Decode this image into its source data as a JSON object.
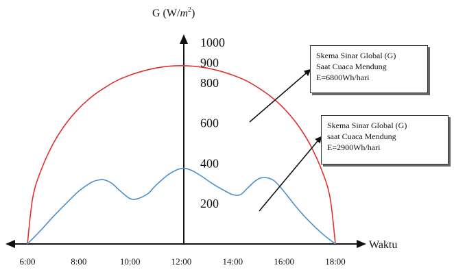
{
  "chart_data": {
    "type": "line",
    "ylabel_base": "G (W/",
    "ylabel_unit": "m",
    "ylabel_exp": "2",
    "ylabel_close": ")",
    "xlabel": "Waktu",
    "x_ticks": [
      "6:00",
      "8:00",
      "10:00",
      "12:00",
      "14:00",
      "16:00",
      "18:00"
    ],
    "y_ticks": [
      200,
      400,
      600,
      800,
      900,
      1000
    ],
    "ylim": [
      0,
      1000
    ],
    "xlim": [
      6,
      18
    ],
    "series": [
      {
        "color": "#e03030",
        "x": [
          6.0,
          6.2,
          6.5,
          7.0,
          7.5,
          8.0,
          8.5,
          9.0,
          9.5,
          10.0,
          10.5,
          11.0,
          11.5,
          12.0,
          12.5,
          13.0,
          13.5,
          14.0,
          14.5,
          15.0,
          15.5,
          16.0,
          16.5,
          17.0,
          17.5,
          17.8,
          18.0
        ],
        "y": [
          0,
          225,
          356,
          497,
          597,
          672,
          730,
          775,
          812,
          838,
          858,
          873,
          882,
          885,
          882,
          873,
          858,
          838,
          812,
          775,
          730,
          672,
          597,
          497,
          356,
          225,
          0
        ]
      },
      {
        "color": "#4a8fd0",
        "x": [
          6.0,
          6.5,
          7.0,
          7.5,
          8.0,
          8.5,
          8.8,
          9.0,
          9.3,
          9.6,
          10.0,
          10.3,
          10.7,
          11.0,
          11.5,
          12.0,
          12.4,
          12.8,
          13.2,
          13.6,
          14.0,
          14.3,
          14.6,
          14.9,
          15.2,
          15.6,
          16.0,
          16.5,
          17.0,
          17.5,
          18.0
        ],
        "y": [
          0,
          65,
          135,
          200,
          262,
          306,
          318,
          318,
          300,
          265,
          225,
          225,
          250,
          290,
          345,
          375,
          365,
          335,
          300,
          270,
          245,
          245,
          280,
          315,
          330,
          315,
          260,
          180,
          110,
          50,
          0
        ]
      }
    ],
    "annotations": [
      {
        "lines": [
          "Skema Sinar Global (G)",
          "Saat Cuaca Mendung",
          "E=6800Wh/hari"
        ]
      },
      {
        "lines": [
          "Skema Sinar Global (G)",
          "saat Cuaca Mendung",
          "E=2900Wh/hari"
        ]
      }
    ]
  }
}
